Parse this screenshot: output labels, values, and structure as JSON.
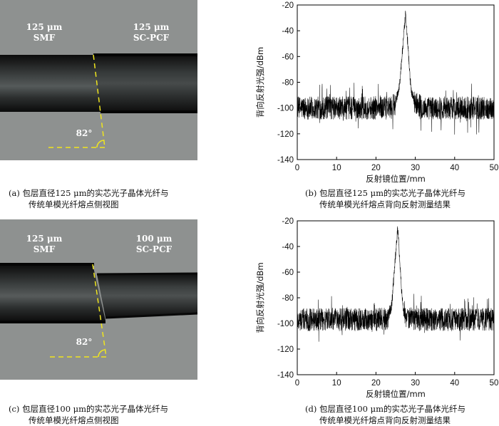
{
  "panels": {
    "a": {
      "left_label": {
        "size": "125 μm",
        "type": "SMF"
      },
      "right_label": {
        "size": "125 μm",
        "type": "SC-PCF"
      },
      "angle": "82°",
      "caption_line1": "(a) 包层直径125 μm的实芯光子晶体光纤与",
      "caption_line2": "传统单模光纤熔点侧视图"
    },
    "b": {
      "caption_line1": "(b) 包层直径125 μm的实芯光子晶体光纤与",
      "caption_line2": "传统单模光纤熔点背向反射测量结果"
    },
    "c": {
      "left_label": {
        "size": "125 μm",
        "type": "SMF"
      },
      "right_label": {
        "size": "100 μm",
        "type": "SC-PCF"
      },
      "angle": "82°",
      "caption_line1": "(c) 包层直径100 μm的实芯光子晶体光纤与",
      "caption_line2": "传统单模光纤熔点侧视图"
    },
    "d": {
      "caption_line1": "(d) 包层直径100 μm的实芯光子晶体光纤与",
      "caption_line2": "传统单模光纤熔点背向反射测量结果"
    }
  },
  "colors": {
    "photo_bg": "#8e9190",
    "fiber_dark": "#0d0d0d",
    "fiber_core": "#4d5252",
    "annotation": "#f0e61e",
    "trace": "#000000"
  },
  "chart_data": [
    {
      "type": "line",
      "title": "",
      "xlabel": "反射镜位置/mm",
      "ylabel": "背向反射光强/dBm",
      "xlim": [
        0,
        50
      ],
      "ylim": [
        -140,
        -20
      ],
      "xticks": [
        0,
        10,
        20,
        30,
        40,
        50
      ],
      "yticks": [
        -140,
        -120,
        -100,
        -80,
        -60,
        -40,
        -20
      ],
      "grid": false,
      "noise_floor_dBm": -100,
      "noise_spread_dBm": 9,
      "peak": {
        "x": 27.5,
        "y": -28
      },
      "series": [
        {
          "x": [
            0,
            5,
            10,
            15,
            20,
            24,
            25,
            26,
            26.5,
            27,
            27.5,
            28,
            28.5,
            29,
            30,
            32,
            35,
            40,
            45,
            50
          ],
          "values": [
            -100,
            -100,
            -100,
            -100,
            -100,
            -100,
            -96,
            -82,
            -64,
            -46,
            -28,
            -46,
            -70,
            -88,
            -96,
            -100,
            -100,
            -100,
            -100,
            -100
          ]
        }
      ]
    },
    {
      "type": "line",
      "title": "",
      "xlabel": "反射镜位置/mm",
      "ylabel": "背向反射光强/dBm",
      "xlim": [
        0,
        50
      ],
      "ylim": [
        -140,
        -20
      ],
      "xticks": [
        0,
        10,
        20,
        30,
        40,
        50
      ],
      "yticks": [
        -140,
        -120,
        -100,
        -80,
        -60,
        -40,
        -20
      ],
      "grid": false,
      "noise_floor_dBm": -97,
      "noise_spread_dBm": 9,
      "peak": {
        "x": 25.5,
        "y": -25
      },
      "series": [
        {
          "x": [
            0,
            5,
            10,
            15,
            20,
            23,
            24,
            24.5,
            25,
            25.5,
            26,
            26.5,
            27,
            28,
            30,
            35,
            40,
            45,
            50
          ],
          "values": [
            -97,
            -97,
            -97,
            -97,
            -97,
            -96,
            -86,
            -66,
            -46,
            -25,
            -48,
            -74,
            -90,
            -96,
            -97,
            -97,
            -97,
            -97,
            -97
          ]
        }
      ]
    }
  ]
}
